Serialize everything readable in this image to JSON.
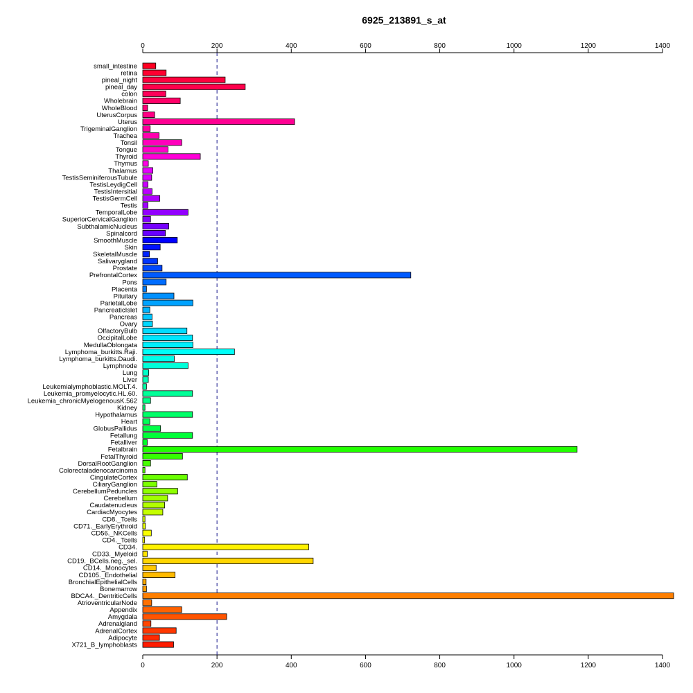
{
  "chart_data": {
    "type": "bar",
    "orientation": "horizontal",
    "title": "6925_213891_s_at",
    "xlabel": "",
    "ylabel": "",
    "xlim": [
      0,
      1400
    ],
    "x_ticks": [
      0,
      200,
      400,
      600,
      800,
      1000,
      1200,
      1400
    ],
    "x_tick_labels": [
      "0",
      "200",
      "400",
      "600",
      "800",
      "1000",
      "1200",
      "1400"
    ],
    "axis_positions": [
      "top",
      "bottom"
    ],
    "reference_line": 200,
    "grid": false,
    "legend": "none",
    "categories": [
      "small_intestine",
      "retina",
      "pineal_night",
      "pineal_day",
      "colon",
      "Wholebrain",
      "WholeBlood",
      "UterusCorpus",
      "Uterus",
      "TrigeminalGanglion",
      "Trachea",
      "Tonsil",
      "Tongue",
      "Thyroid",
      "Thymus",
      "Thalamus",
      "TestisSeminiferousTubule",
      "TestisLeydigCell",
      "TestisIntersitial",
      "TestisGermCell",
      "Testis",
      "TemporalLobe",
      "SuperiorCervicalGanglion",
      "SubthalamicNucleus",
      "Spinalcord",
      "SmoothMuscle",
      "Skin",
      "SkeletalMuscle",
      "Salivarygland",
      "Prostate",
      "PrefrontalCortex",
      "Pons",
      "Placenta",
      "Pituitary",
      "ParietalLobe",
      "PancreaticIslet",
      "Pancreas",
      "Ovary",
      "OlfactoryBulb",
      "OccipitalLobe",
      "MedullaOblongata",
      "Lymphoma_burkitts.Raji.",
      "Lymphoma_burkitts.Daudi.",
      "Lymphnode",
      "Lung",
      "Liver",
      "Leukemialymphoblastic.MOLT.4.",
      "Leukemia_promyelocytic.HL.60.",
      "Leukemia_chronicMyelogenousK.562",
      "Kidney",
      "Hypothalamus",
      "Heart",
      "GlobusPallidus",
      "Fetallung",
      "Fetalliver",
      "Fetalbrain",
      "FetalThyroid",
      "DorsalRootGanglion",
      "Colorectaladenocarcinoma",
      "CingulateCortex",
      "CiliaryGanglion",
      "CerebellumPeduncles",
      "Cerebellum",
      "Caudatenucleus",
      "CardiacMyocytes",
      "CD8._Tcells",
      "CD71._EarlyErythroid",
      "CD56._NKCells",
      "CD4._Tcells",
      "CD34.",
      "CD33._Myeloid",
      "CD19._BCells.neg._sel.",
      "CD14._Monocytes",
      "CD105._Endothelial",
      "BronchialEpithelialCells",
      "Bonemarrow",
      "BDCA4._DentriticCells",
      "AtrioventricularNode",
      "Appendix",
      "Amygdala",
      "Adrenalgland",
      "AdrenalCortex",
      "Adipocyte",
      "X721_B_lymphoblasts"
    ],
    "values": [
      35,
      63,
      222,
      276,
      62,
      101,
      13,
      32,
      409,
      20,
      44,
      105,
      68,
      155,
      15,
      27,
      24,
      14,
      25,
      46,
      14,
      122,
      21,
      70,
      61,
      93,
      47,
      18,
      40,
      52,
      722,
      63,
      10,
      84,
      135,
      19,
      25,
      26,
      119,
      134,
      135,
      247,
      85,
      122,
      16,
      15,
      10,
      134,
      21,
      6,
      134,
      19,
      48,
      134,
      12,
      1170,
      107,
      21,
      6,
      120,
      38,
      94,
      67,
      59,
      54,
      6,
      7,
      23,
      5,
      447,
      12,
      459,
      36,
      87,
      9,
      10,
      1430,
      24,
      105,
      226,
      22,
      90,
      45,
      83
    ],
    "colors": [
      "#FF0022",
      "#FF0030",
      "#FF003E",
      "#FF004C",
      "#FF005A",
      "#FF0068",
      "#FF0076",
      "#FF0084",
      "#FF0092",
      "#FF00A0",
      "#FF00AE",
      "#FF00BC",
      "#FF00CA",
      "#FF00D8",
      "#FF00E6",
      "#E600FF",
      "#D800FF",
      "#CA00FF",
      "#BC00FF",
      "#AE00FF",
      "#A000FF",
      "#9200FF",
      "#8400FF",
      "#7600FF",
      "#6800FF",
      "#0000FF",
      "#0012FF",
      "#0024FF",
      "#0036FF",
      "#0048FF",
      "#005AFF",
      "#006CFF",
      "#007EFF",
      "#0090FF",
      "#00A2FF",
      "#00B4FF",
      "#00C6FF",
      "#00D8FF",
      "#00DDFF",
      "#00E6FF",
      "#00F0FF",
      "#00FFF8",
      "#00FFE8",
      "#00FFD8",
      "#00FFC8",
      "#00FFB8",
      "#00FFA8",
      "#00FF98",
      "#00FF88",
      "#00FF78",
      "#00FF68",
      "#00FF58",
      "#00FF48",
      "#00FF38",
      "#00FF28",
      "#22FF00",
      "#34FF00",
      "#46FF00",
      "#58FF00",
      "#6AFF00",
      "#7CFF00",
      "#8EFF00",
      "#A0FF00",
      "#B2FF00",
      "#C4FF00",
      "#D6FF00",
      "#E8FF00",
      "#F8FF00",
      "#FFFF00",
      "#FFF200",
      "#FFE400",
      "#FFD600",
      "#FFC800",
      "#FFBA00",
      "#FFAC00",
      "#FF9E00",
      "#FF7E00",
      "#FF7000",
      "#FF6200",
      "#FF5400",
      "#FF4600",
      "#FF3800",
      "#FF2A00",
      "#FF1C00"
    ]
  }
}
